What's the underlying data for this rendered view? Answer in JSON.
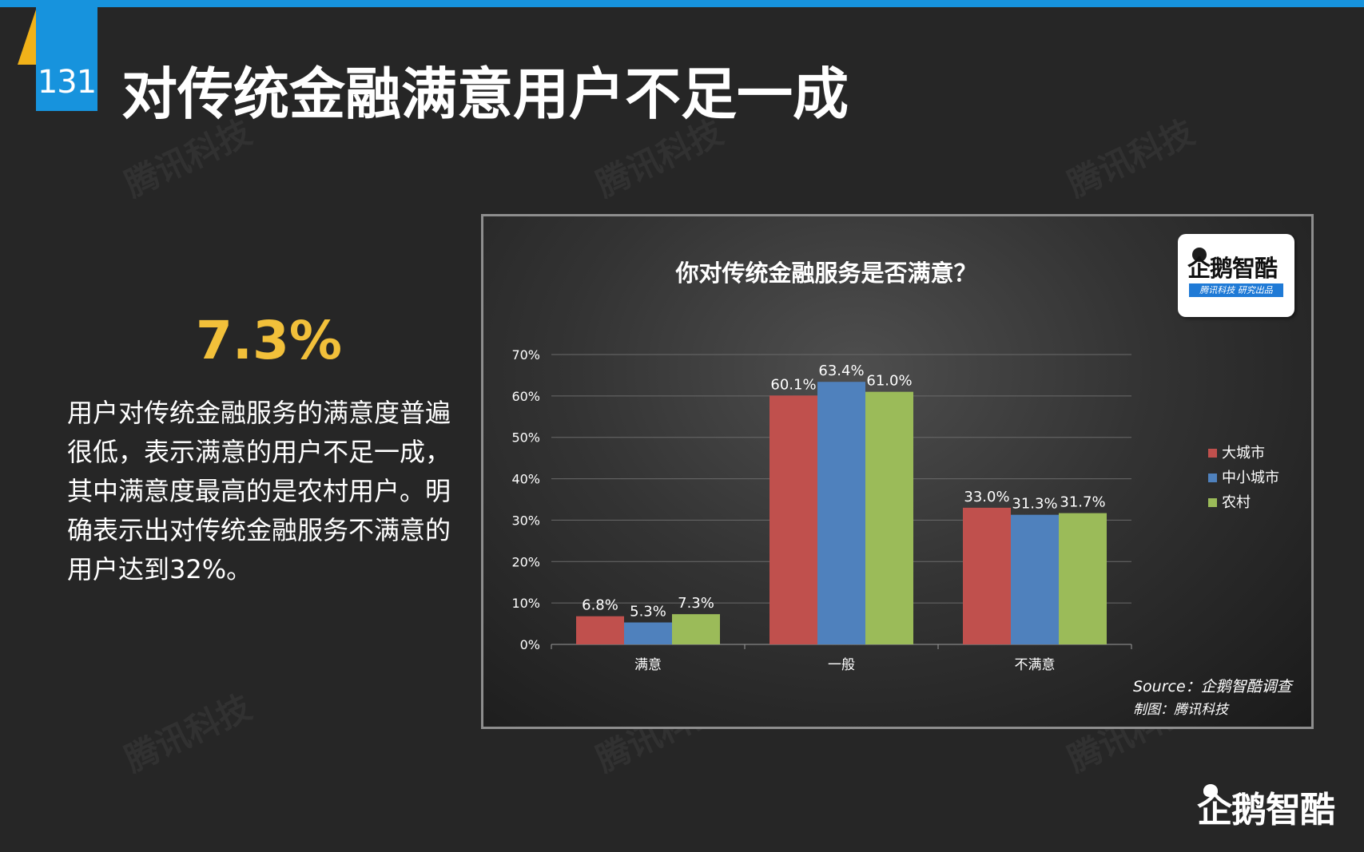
{
  "header": {
    "page_number": "131",
    "title": "对传统金融满意用户不足一成"
  },
  "summary": {
    "highlight": "7.3%",
    "description": "用户对传统金融服务的满意度普遍很低，表示满意的用户不足一成，其中满意度最高的是农村用户。明确表示出对传统金融服务不满意的用户达到32%。"
  },
  "logo": {
    "name": "企鹅智酷",
    "tagline": "腾讯科技  研究出品"
  },
  "watermark": "腾讯科技",
  "source": "Source：企鹅智酷调查",
  "credit": "制图：腾讯科技",
  "brand": "企鹅智酷",
  "colors": {
    "accent_blue": "#1793dd",
    "accent_yellow": "#f1b219",
    "highlight_gold": "#f2c03a"
  },
  "chart_data": {
    "type": "bar",
    "title": "你对传统金融服务是否满意？",
    "categories": [
      "满意",
      "一般",
      "不满意"
    ],
    "series": [
      {
        "name": "大城市",
        "values": [
          6.8,
          60.1,
          33.0
        ],
        "labels": [
          "6.8%",
          "60.1%",
          "33.0%"
        ],
        "color": "#c0504d"
      },
      {
        "name": "中小城市",
        "values": [
          5.3,
          63.4,
          31.3
        ],
        "labels": [
          "5.3%",
          "63.4%",
          "31.3%"
        ],
        "color": "#4f81bd"
      },
      {
        "name": "农村",
        "values": [
          7.3,
          61.0,
          31.7
        ],
        "labels": [
          "7.3%",
          "61.0%",
          "31.7%"
        ],
        "color": "#9bbb59"
      }
    ],
    "ylim": [
      0,
      70
    ],
    "yticks": [
      "0%",
      "10%",
      "20%",
      "30%",
      "40%",
      "50%",
      "60%",
      "70%"
    ],
    "grid": true,
    "legend": "right"
  }
}
